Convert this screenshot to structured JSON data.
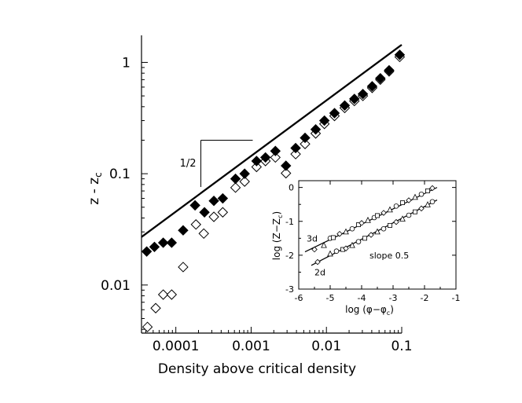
{
  "chart_data": [
    {
      "type": "scatter",
      "xlabel": "Density above critical density",
      "ylabel": "z - z",
      "ylabel_subscript": "c",
      "xscale": "log",
      "yscale": "log",
      "xlim": [
        3.5e-05,
        0.1
      ],
      "ylim": [
        0.0037,
        1.75
      ],
      "xticks": [
        {
          "value": 0.0001,
          "label": "0.0001"
        },
        {
          "value": 0.001,
          "label": "0.001"
        },
        {
          "value": 0.01,
          "label": "0.01"
        },
        {
          "value": 0.1,
          "label": "0.1"
        }
      ],
      "yticks": [
        {
          "value": 0.01,
          "label": "0.01"
        },
        {
          "value": 0.1,
          "label": "0.1"
        },
        {
          "value": 1,
          "label": "1"
        }
      ],
      "grid": false,
      "reference_line": {
        "x": [
          3.5e-05,
          0.1
        ],
        "y": [
          0.027,
          1.44
        ]
      },
      "slope_annotation": {
        "label": "1/2",
        "x_left": 0.000215,
        "x_right": 0.00105,
        "y_top": 0.2,
        "y_bottom": 0.076
      },
      "series": [
        {
          "marker": "filled-diamond",
          "x": [
            4.1e-05,
            5.2e-05,
            6.8e-05,
            8.8e-05,
            0.000125,
            0.00018,
            0.00024,
            0.00032,
            0.00042,
            0.00062,
            0.00082,
            0.00118,
            0.00155,
            0.0021,
            0.0029,
            0.0039,
            0.0052,
            0.0072,
            0.0094,
            0.0128,
            0.0175,
            0.0235,
            0.0305,
            0.0405,
            0.052,
            0.068,
            0.094
          ],
          "y": [
            0.02,
            0.022,
            0.024,
            0.024,
            0.031,
            0.052,
            0.045,
            0.057,
            0.06,
            0.09,
            0.1,
            0.13,
            0.14,
            0.16,
            0.118,
            0.17,
            0.21,
            0.25,
            0.3,
            0.35,
            0.41,
            0.47,
            0.52,
            0.61,
            0.72,
            0.85,
            1.17
          ]
        },
        {
          "marker": "open-diamond",
          "x": [
            4.2e-05,
            5.4e-05,
            6.8e-05,
            8.8e-05,
            0.000125,
            0.000185,
            0.000235,
            0.00032,
            0.00042,
            0.00062,
            0.00082,
            0.00118,
            0.00155,
            0.0021,
            0.0029,
            0.0039,
            0.0052,
            0.0072,
            0.0094,
            0.0128,
            0.0175,
            0.0235,
            0.0305,
            0.0405,
            0.052,
            0.068,
            0.094
          ],
          "y": [
            0.0042,
            0.0062,
            0.0082,
            0.0082,
            0.0145,
            0.035,
            0.029,
            0.041,
            0.045,
            0.075,
            0.085,
            0.115,
            0.13,
            0.14,
            0.101,
            0.15,
            0.185,
            0.23,
            0.28,
            0.33,
            0.39,
            0.45,
            0.5,
            0.59,
            0.7,
            0.83,
            1.12
          ]
        }
      ]
    },
    {
      "type": "scatter",
      "xlabel": "log (φ−φ",
      "xlabel_subscript": "c",
      "xlabel_suffix": ")",
      "ylabel": "log (Z−Z",
      "ylabel_subscript": "c",
      "ylabel_suffix": ")",
      "xlim": [
        -6,
        -1
      ],
      "ylim": [
        -3,
        0.2
      ],
      "xticks": [
        {
          "value": -6,
          "label": "-6"
        },
        {
          "value": -5,
          "label": "-5"
        },
        {
          "value": -4,
          "label": "-4"
        },
        {
          "value": -3,
          "label": "-3"
        },
        {
          "value": -2,
          "label": "-2"
        },
        {
          "value": -1,
          "label": "-1"
        }
      ],
      "yticks": [
        {
          "value": 0,
          "label": "0"
        },
        {
          "value": -1,
          "label": "-1"
        },
        {
          "value": -2,
          "label": "-2"
        },
        {
          "value": -3,
          "label": "-3"
        }
      ],
      "annotations": [
        {
          "text": "slope 0.5",
          "x": -3.75,
          "y": -2.0
        },
        {
          "text": "3d",
          "x": -5.75,
          "y": -1.5
        },
        {
          "text": "2d",
          "x": -5.5,
          "y": -2.5
        }
      ],
      "series": [
        {
          "name": "3d",
          "marker": "mixed-open",
          "x": [
            -5.5,
            -5.2,
            -5.0,
            -4.9,
            -4.7,
            -4.5,
            -4.3,
            -4.1,
            -4.0,
            -3.8,
            -3.6,
            -3.5,
            -3.3,
            -3.1,
            -2.9,
            -2.7,
            -2.5,
            -2.3,
            -2.1,
            -1.9,
            -1.75
          ],
          "y": [
            -1.83,
            -1.7,
            -1.5,
            -1.48,
            -1.37,
            -1.3,
            -1.22,
            -1.1,
            -1.05,
            -0.96,
            -0.89,
            -0.83,
            -0.75,
            -0.65,
            -0.55,
            -0.45,
            -0.38,
            -0.28,
            -0.2,
            -0.1,
            -0.02
          ],
          "fit": {
            "x": [
              -5.8,
              -1.6
            ],
            "y": [
              -1.9,
              0.0
            ]
          }
        },
        {
          "name": "2d",
          "marker": "mixed-open",
          "x": [
            -5.4,
            -5.0,
            -4.8,
            -4.6,
            -4.5,
            -4.3,
            -4.1,
            -3.9,
            -3.7,
            -3.5,
            -3.3,
            -3.1,
            -2.9,
            -2.7,
            -2.5,
            -2.3,
            -2.1,
            -1.9,
            -1.75
          ],
          "y": [
            -2.2,
            -1.95,
            -1.88,
            -1.83,
            -1.8,
            -1.7,
            -1.6,
            -1.5,
            -1.4,
            -1.3,
            -1.22,
            -1.12,
            -1.02,
            -0.92,
            -0.82,
            -0.72,
            -0.62,
            -0.5,
            -0.42
          ],
          "fit": {
            "x": [
              -5.6,
              -1.6
            ],
            "y": [
              -2.3,
              -0.37
            ]
          }
        }
      ]
    }
  ]
}
